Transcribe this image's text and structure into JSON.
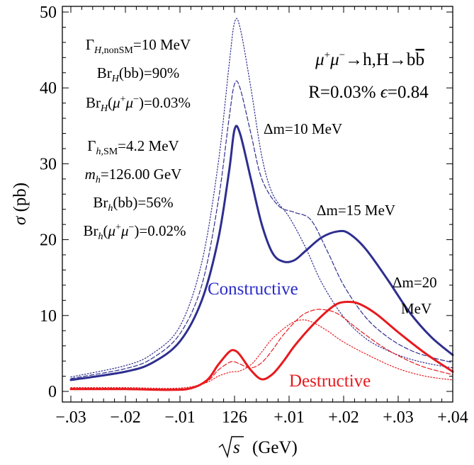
{
  "chart_data": {
    "type": "line",
    "title": "",
    "xlabel": "√s (GeV)",
    "ylabel": "σ (pb)",
    "xlim": [
      -0.03,
      0.04
    ],
    "ylim": [
      0,
      50
    ],
    "x_tick_values": [
      -0.03,
      -0.02,
      -0.01,
      0,
      0.01,
      0.02,
      0.03,
      0.04
    ],
    "x_tick_labels": [
      "−.03",
      "−.02",
      "−.01",
      "126",
      "+.01",
      "+.02",
      "+.03",
      "+.04"
    ],
    "y_tick_values": [
      0,
      10,
      20,
      30,
      40,
      50
    ],
    "y_tick_labels": [
      "0",
      "10",
      "20",
      "30",
      "40",
      "50"
    ],
    "grid": false,
    "legend": "none",
    "series": [
      {
        "group": "constructive",
        "dm": "Δm=20 MeV",
        "style": "solid",
        "color": "#2e2e8f",
        "x": [
          -0.03,
          -0.02,
          -0.015,
          -0.01,
          -0.006,
          -0.003,
          -0.001,
          0.0,
          0.001,
          0.003,
          0.005,
          0.007,
          0.009,
          0.011,
          0.013,
          0.016,
          0.019,
          0.021,
          0.024,
          0.028,
          0.032,
          0.036,
          0.04
        ],
        "y": [
          1.5,
          2.6,
          3.8,
          6.6,
          12,
          20,
          29,
          34.5,
          34,
          28,
          22,
          18.2,
          17.1,
          17.3,
          18.5,
          20.3,
          21.1,
          20.8,
          18.8,
          14.8,
          10.5,
          7.2,
          4.8
        ]
      },
      {
        "group": "constructive",
        "dm": "Δm=15 MeV",
        "style": "dashed",
        "color": "#2e2e8f",
        "x": [
          -0.03,
          -0.02,
          -0.015,
          -0.01,
          -0.006,
          -0.003,
          -0.001,
          0.0,
          0.001,
          0.003,
          0.005,
          0.008,
          0.011,
          0.014,
          0.017,
          0.02,
          0.024,
          0.028,
          0.032,
          0.036,
          0.04
        ],
        "y": [
          1.7,
          3.0,
          4.4,
          7.6,
          14,
          25,
          36,
          40.5,
          40,
          34,
          28,
          24.5,
          23.6,
          22.6,
          18.5,
          14,
          9.8,
          7.2,
          5.5,
          4.5,
          3.8
        ]
      },
      {
        "group": "constructive",
        "dm": "Δm=10 MeV",
        "style": "dotted",
        "color": "#2e2e8f",
        "x": [
          -0.03,
          -0.02,
          -0.015,
          -0.01,
          -0.006,
          -0.003,
          -0.001,
          0.0,
          0.001,
          0.003,
          0.005,
          0.007,
          0.01,
          0.013,
          0.016,
          0.02,
          0.024,
          0.028,
          0.032,
          0.036,
          0.04
        ],
        "y": [
          1.9,
          3.4,
          5.0,
          8.6,
          17,
          30,
          43,
          48.6,
          48,
          40,
          31,
          26,
          23,
          19,
          14.3,
          9.8,
          7.0,
          5.4,
          4.3,
          3.6,
          3.1
        ]
      },
      {
        "group": "destructive",
        "dm": "Δm=20 MeV",
        "style": "solid",
        "color": "#e8191d",
        "x": [
          -0.03,
          -0.02,
          -0.012,
          -0.008,
          -0.005,
          -0.003,
          -0.001,
          0.0,
          0.001,
          0.003,
          0.005,
          0.007,
          0.009,
          0.011,
          0.014,
          0.017,
          0.019,
          0.021,
          0.023,
          0.026,
          0.03,
          0.035,
          0.04
        ],
        "y": [
          0.3,
          0.3,
          0.2,
          0.4,
          1.5,
          3.5,
          5.2,
          5.4,
          4.8,
          2.8,
          1.6,
          2.3,
          4.0,
          6.0,
          8.5,
          10.6,
          11.6,
          11.8,
          11.5,
          10.2,
          7.8,
          5.0,
          2.6
        ]
      },
      {
        "group": "destructive",
        "dm": "Δm=15 MeV",
        "style": "dashed",
        "color": "#e8191d",
        "x": [
          -0.03,
          -0.02,
          -0.012,
          -0.008,
          -0.005,
          -0.003,
          -0.001,
          0.0,
          0.001,
          0.003,
          0.005,
          0.007,
          0.009,
          0.012,
          0.014,
          0.016,
          0.019,
          0.023,
          0.028,
          0.034,
          0.04
        ],
        "y": [
          0.4,
          0.4,
          0.3,
          0.5,
          1.3,
          2.8,
          3.8,
          3.9,
          3.6,
          3.1,
          3.8,
          5.5,
          7.5,
          9.8,
          10.6,
          10.8,
          10.2,
          8.0,
          5.5,
          3.4,
          2.2
        ]
      },
      {
        "group": "destructive",
        "dm": "Δm=10 MeV",
        "style": "dotted",
        "color": "#e8191d",
        "x": [
          -0.03,
          -0.02,
          -0.012,
          -0.008,
          -0.005,
          -0.003,
          -0.001,
          0.0,
          0.001,
          0.003,
          0.005,
          0.007,
          0.01,
          0.012,
          0.014,
          0.017,
          0.02,
          0.025,
          0.03,
          0.035,
          0.04
        ],
        "y": [
          0.5,
          0.5,
          0.4,
          0.6,
          1.2,
          2.0,
          2.5,
          2.6,
          2.7,
          3.5,
          5.2,
          7.0,
          8.8,
          9.4,
          9.2,
          8.0,
          6.5,
          4.6,
          3.0,
          2.0,
          1.5
        ]
      }
    ],
    "annotations": {
      "left_H": [
        {
          "base": "Γ",
          "sub": "H,nonSM",
          "tail": "=10 MeV"
        },
        {
          "base": "Br",
          "sub": "H",
          "tail": "(bb)=90%"
        },
        {
          "base": "Br",
          "sub": "H",
          "tail": "(μ⁺μ⁻)=0.03%"
        }
      ],
      "left_h": [
        {
          "base": "Γ",
          "sub": "h,SM",
          "tail": "=4.2 MeV"
        },
        {
          "base": "m",
          "sub": "h",
          "tail": "=126.00 GeV"
        },
        {
          "base": "Br",
          "sub": "h",
          "tail": "(bb)=56%"
        },
        {
          "base": "Br",
          "sub": "h",
          "tail": "(μ⁺μ⁻)=0.02%"
        }
      ],
      "process": "μ⁺μ⁻→h,H→bb̄",
      "params": "R=0.03% ϵ=0.84",
      "dm10": "Δm=10 MeV",
      "dm15": "Δm=15 MeV",
      "dm20_line1": "Δm=20",
      "dm20_line2": "MeV",
      "constructive": "Constructive",
      "destructive": "Destructive"
    }
  }
}
